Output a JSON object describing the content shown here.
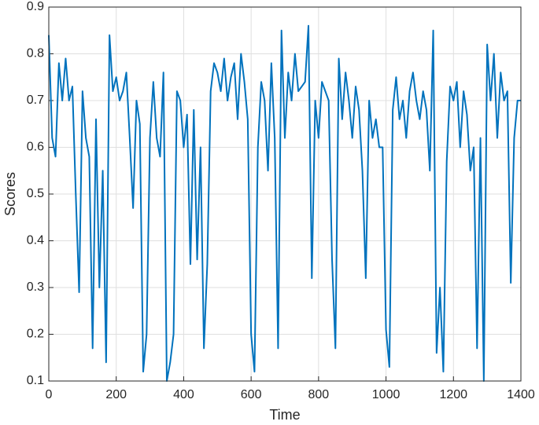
{
  "chart_data": {
    "type": "line",
    "xlabel": "Time",
    "ylabel": "Scores",
    "x": [
      0,
      10,
      20,
      30,
      40,
      50,
      60,
      70,
      80,
      90,
      100,
      110,
      120,
      130,
      140,
      150,
      160,
      170,
      180,
      190,
      200,
      210,
      220,
      230,
      240,
      250,
      260,
      270,
      280,
      290,
      300,
      310,
      320,
      330,
      340,
      350,
      360,
      370,
      380,
      390,
      400,
      410,
      420,
      430,
      440,
      450,
      460,
      470,
      480,
      490,
      500,
      510,
      520,
      530,
      540,
      550,
      560,
      570,
      580,
      590,
      600,
      610,
      620,
      630,
      640,
      650,
      660,
      670,
      680,
      690,
      700,
      710,
      720,
      730,
      740,
      750,
      760,
      770,
      780,
      790,
      800,
      810,
      820,
      830,
      840,
      850,
      860,
      870,
      880,
      890,
      900,
      910,
      920,
      930,
      940,
      950,
      960,
      970,
      980,
      990,
      1000,
      1010,
      1020,
      1030,
      1040,
      1050,
      1060,
      1070,
      1080,
      1090,
      1100,
      1110,
      1120,
      1130,
      1140,
      1150,
      1160,
      1170,
      1180,
      1190,
      1200,
      1210,
      1220,
      1230,
      1240,
      1250,
      1260,
      1270,
      1280,
      1290,
      1300,
      1310,
      1320,
      1330,
      1340,
      1350,
      1360,
      1370,
      1380,
      1390,
      1400
    ],
    "series": [
      {
        "name": "Scores",
        "color": "#0072bd",
        "values": [
          0.84,
          0.62,
          0.58,
          0.78,
          0.7,
          0.79,
          0.7,
          0.73,
          0.5,
          0.29,
          0.72,
          0.62,
          0.58,
          0.17,
          0.66,
          0.3,
          0.55,
          0.14,
          0.84,
          0.72,
          0.75,
          0.7,
          0.72,
          0.76,
          0.62,
          0.47,
          0.7,
          0.65,
          0.12,
          0.2,
          0.62,
          0.74,
          0.62,
          0.58,
          0.76,
          0.1,
          0.14,
          0.2,
          0.72,
          0.7,
          0.6,
          0.67,
          0.35,
          0.68,
          0.36,
          0.6,
          0.17,
          0.35,
          0.72,
          0.78,
          0.76,
          0.72,
          0.79,
          0.7,
          0.75,
          0.78,
          0.66,
          0.8,
          0.74,
          0.66,
          0.2,
          0.12,
          0.6,
          0.74,
          0.7,
          0.55,
          0.78,
          0.62,
          0.17,
          0.85,
          0.62,
          0.76,
          0.7,
          0.8,
          0.72,
          0.73,
          0.74,
          0.86,
          0.32,
          0.7,
          0.62,
          0.74,
          0.72,
          0.7,
          0.36,
          0.17,
          0.79,
          0.66,
          0.76,
          0.7,
          0.62,
          0.73,
          0.68,
          0.55,
          0.32,
          0.7,
          0.62,
          0.66,
          0.6,
          0.6,
          0.21,
          0.13,
          0.68,
          0.75,
          0.66,
          0.7,
          0.62,
          0.72,
          0.76,
          0.7,
          0.66,
          0.72,
          0.68,
          0.55,
          0.85,
          0.16,
          0.3,
          0.12,
          0.57,
          0.73,
          0.7,
          0.74,
          0.6,
          0.72,
          0.67,
          0.55,
          0.6,
          0.17,
          0.62,
          0.1,
          0.82,
          0.7,
          0.8,
          0.62,
          0.76,
          0.7,
          0.72,
          0.31,
          0.62,
          0.7,
          0.7
        ]
      }
    ],
    "xlim": [
      0,
      1400
    ],
    "xticks": [
      0,
      200,
      400,
      600,
      800,
      1000,
      1200,
      1400
    ],
    "ylim": [
      0.1,
      0.9
    ],
    "yticks": [
      0.1,
      0.2,
      0.3,
      0.4,
      0.5,
      0.6,
      0.7,
      0.8,
      0.9
    ],
    "grid": true
  }
}
